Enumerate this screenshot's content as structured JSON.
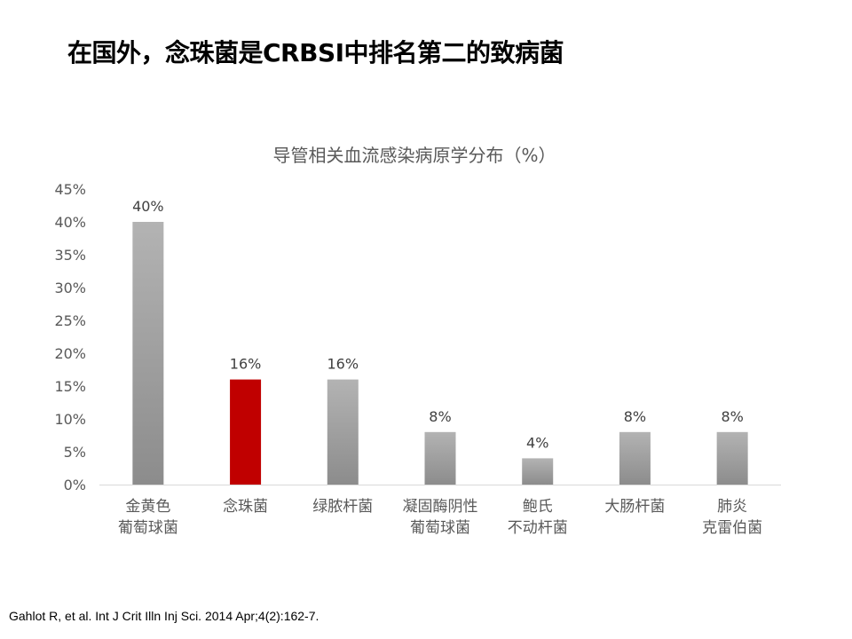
{
  "slide": {
    "title": "在国外，念珠菌是CRBSI中排名第二的致病菌",
    "citation": "Gahlot R, et al. Int J Crit Illn Inj Sci. 2014 Apr;4(2):162-7."
  },
  "colors": {
    "bar_default": "#a6a6a6",
    "bar_highlight": "#c00000",
    "axis_line": "#d9d9d9"
  },
  "chart_data": {
    "type": "bar",
    "title": "导管相关血流感染病原学分布（%）",
    "xlabel": "",
    "ylabel": "",
    "categories": [
      [
        "金黄色",
        "葡萄球菌"
      ],
      [
        "念珠菌"
      ],
      [
        "绿脓杆菌"
      ],
      [
        "凝固酶阴性",
        "葡萄球菌"
      ],
      [
        " 鲍氏",
        "不动杆菌"
      ],
      [
        "大肠杆菌"
      ],
      [
        "肺炎",
        "克雷伯菌"
      ]
    ],
    "values": [
      40,
      16,
      16,
      8,
      4,
      8,
      8
    ],
    "data_labels": [
      "40%",
      "16%",
      "16%",
      "8%",
      "4%",
      "8%",
      "8%"
    ],
    "highlight_index": 1,
    "ylim": [
      0,
      45
    ],
    "yticks": [
      0,
      5,
      10,
      15,
      20,
      25,
      30,
      35,
      40,
      45
    ],
    "ytick_labels": [
      "0%",
      "5%",
      "10%",
      "15%",
      "20%",
      "25%",
      "30%",
      "35%",
      "40%",
      "45%"
    ],
    "grid": false,
    "legend": "none"
  }
}
